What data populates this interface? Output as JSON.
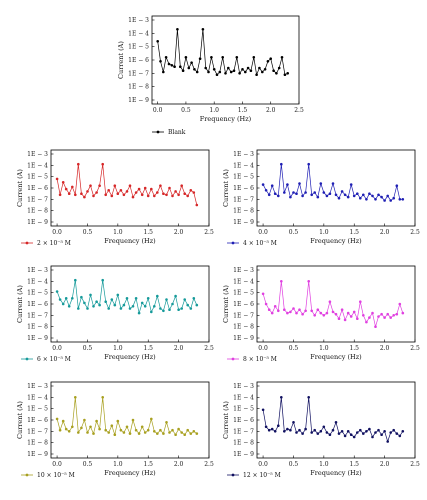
{
  "chart_data": [
    {
      "type": "line",
      "color": "#000000",
      "legend": "Blank",
      "xlabel": "Frequency (Hz)",
      "ylabel": "Current (A)",
      "xticks": [
        "0.0",
        "0.5",
        "1.0",
        "1.5",
        "2.0",
        "2.5"
      ],
      "yticks": [
        "1E − 3",
        "1E − 4",
        "1E − 5",
        "1E − 6",
        "1E − 7",
        "1E − 8",
        "1E − 9"
      ],
      "xlim": [
        -0.1,
        2.5
      ],
      "ylog_exponent_range": [
        -9,
        -3
      ],
      "x": [
        0.0,
        0.05,
        0.1,
        0.15,
        0.2,
        0.25,
        0.3,
        0.35,
        0.4,
        0.45,
        0.5,
        0.55,
        0.6,
        0.65,
        0.7,
        0.75,
        0.8,
        0.85,
        0.9,
        0.95,
        1.0,
        1.05,
        1.1,
        1.15,
        1.2,
        1.25,
        1.3,
        1.35,
        1.4,
        1.45,
        1.5,
        1.55,
        1.6,
        1.65,
        1.7,
        1.75,
        1.8,
        1.85,
        1.9,
        1.95,
        2.0,
        2.05,
        2.1,
        2.15,
        2.2,
        2.25,
        2.3
      ],
      "log10_y": [
        -4.6,
        -6.1,
        -6.9,
        -5.8,
        -6.3,
        -6.4,
        -6.5,
        -3.7,
        -6.5,
        -6.8,
        -5.8,
        -6.6,
        -6.2,
        -6.7,
        -6.9,
        -5.9,
        -3.7,
        -6.6,
        -6.9,
        -5.8,
        -6.7,
        -7.1,
        -6.9,
        -5.8,
        -7.0,
        -6.6,
        -6.9,
        -6.8,
        -5.8,
        -7.0,
        -6.7,
        -6.9,
        -6.6,
        -6.8,
        -5.8,
        -7.1,
        -6.6,
        -6.9,
        -6.7,
        -6.1,
        -5.9,
        -6.8,
        -7.0,
        -6.6,
        -5.8,
        -7.1,
        -7.0
      ]
    },
    {
      "type": "line",
      "color": "#d62728",
      "legend": "2 × 10⁻⁵ M",
      "xlabel": "Frequency (Hz)",
      "ylabel": "Current (A)",
      "xticks": [
        "0.0",
        "0.5",
        "1.0",
        "1.5",
        "2.0",
        "2.5"
      ],
      "yticks": [
        "1E − 3",
        "1E − 4",
        "1E − 5",
        "1E − 6",
        "1E − 7",
        "1E − 8",
        "1E − 9"
      ],
      "xlim": [
        -0.1,
        2.5
      ],
      "ylog_exponent_range": [
        -9,
        -3
      ],
      "x": [
        0.0,
        0.05,
        0.1,
        0.15,
        0.2,
        0.25,
        0.3,
        0.35,
        0.4,
        0.45,
        0.5,
        0.55,
        0.6,
        0.65,
        0.7,
        0.75,
        0.8,
        0.85,
        0.9,
        0.95,
        1.0,
        1.05,
        1.1,
        1.15,
        1.2,
        1.25,
        1.3,
        1.35,
        1.4,
        1.45,
        1.5,
        1.55,
        1.6,
        1.65,
        1.7,
        1.75,
        1.8,
        1.85,
        1.9,
        1.95,
        2.0,
        2.05,
        2.1,
        2.15,
        2.2,
        2.25,
        2.3
      ],
      "log10_y": [
        -5.2,
        -6.6,
        -5.5,
        -6.1,
        -6.5,
        -5.9,
        -6.6,
        -3.9,
        -6.5,
        -6.8,
        -6.3,
        -5.8,
        -6.7,
        -6.4,
        -5.8,
        -3.9,
        -6.6,
        -6.2,
        -6.7,
        -5.8,
        -6.5,
        -6.2,
        -6.6,
        -6.3,
        -5.8,
        -6.8,
        -6.4,
        -6.1,
        -6.6,
        -6.0,
        -6.7,
        -6.1,
        -6.7,
        -6.4,
        -5.8,
        -6.5,
        -6.6,
        -6.0,
        -6.7,
        -6.3,
        -6.6,
        -5.8,
        -6.5,
        -6.7,
        -6.2,
        -6.4,
        -7.5
      ]
    },
    {
      "type": "line",
      "color": "#1f1fb4",
      "legend": "4 × 10⁻⁵ M",
      "xlabel": "Frequency (Hz)",
      "ylabel": "Current (A)",
      "xticks": [
        "0.0",
        "0.5",
        "1.0",
        "1.5",
        "2.0",
        "2.5"
      ],
      "yticks": [
        "1E − 3",
        "1E − 4",
        "1E − 5",
        "1E − 6",
        "1E − 7",
        "1E − 8",
        "1E − 9"
      ],
      "xlim": [
        -0.1,
        2.5
      ],
      "ylog_exponent_range": [
        -9,
        -3
      ],
      "x": [
        0.0,
        0.05,
        0.1,
        0.15,
        0.2,
        0.25,
        0.3,
        0.35,
        0.4,
        0.45,
        0.5,
        0.55,
        0.6,
        0.65,
        0.7,
        0.75,
        0.8,
        0.85,
        0.9,
        0.95,
        1.0,
        1.05,
        1.1,
        1.15,
        1.2,
        1.25,
        1.3,
        1.35,
        1.4,
        1.45,
        1.5,
        1.55,
        1.6,
        1.65,
        1.7,
        1.75,
        1.8,
        1.85,
        1.9,
        1.95,
        2.0,
        2.05,
        2.1,
        2.15,
        2.2,
        2.25,
        2.3
      ],
      "log10_y": [
        -5.7,
        -6.2,
        -6.6,
        -5.8,
        -6.5,
        -6.7,
        -3.9,
        -6.4,
        -5.7,
        -6.8,
        -6.4,
        -6.5,
        -5.6,
        -6.7,
        -6.4,
        -3.9,
        -6.6,
        -6.4,
        -6.8,
        -5.6,
        -6.4,
        -6.7,
        -6.5,
        -5.6,
        -6.6,
        -6.9,
        -6.3,
        -6.6,
        -6.8,
        -5.7,
        -6.7,
        -6.5,
        -6.9,
        -6.6,
        -7.0,
        -6.5,
        -6.7,
        -7.0,
        -6.6,
        -6.8,
        -7.1,
        -6.7,
        -7.1,
        -6.9,
        -5.8,
        -7.0,
        -7.0
      ]
    },
    {
      "type": "line",
      "color": "#169a9a",
      "legend": "6 × 10⁻⁵ M",
      "xlabel": "Frequency (Hz)",
      "ylabel": "Current (A)",
      "xticks": [
        "0.0",
        "0.5",
        "1.0",
        "1.5",
        "2.0",
        "2.5"
      ],
      "yticks": [
        "1E − 3",
        "1E − 4",
        "1E − 5",
        "1E − 6",
        "1E − 7",
        "1E − 8",
        "1E − 9"
      ],
      "xlim": [
        -0.1,
        2.5
      ],
      "ylog_exponent_range": [
        -9,
        -3
      ],
      "x": [
        0.0,
        0.05,
        0.1,
        0.15,
        0.2,
        0.25,
        0.3,
        0.35,
        0.4,
        0.45,
        0.5,
        0.55,
        0.6,
        0.65,
        0.7,
        0.75,
        0.8,
        0.85,
        0.9,
        0.95,
        1.0,
        1.05,
        1.1,
        1.15,
        1.2,
        1.25,
        1.3,
        1.35,
        1.4,
        1.45,
        1.5,
        1.55,
        1.6,
        1.65,
        1.7,
        1.75,
        1.8,
        1.85,
        1.9,
        1.95,
        2.0,
        2.05,
        2.1,
        2.15,
        2.2,
        2.25,
        2.3
      ],
      "log10_y": [
        -4.9,
        -5.6,
        -6.0,
        -5.5,
        -6.2,
        -5.5,
        -3.9,
        -6.4,
        -5.4,
        -5.9,
        -6.4,
        -5.2,
        -6.2,
        -5.8,
        -6.1,
        -3.9,
        -5.8,
        -6.4,
        -5.6,
        -6.1,
        -5.2,
        -6.4,
        -6.1,
        -5.5,
        -6.4,
        -6.2,
        -5.5,
        -6.8,
        -5.9,
        -6.2,
        -5.5,
        -6.7,
        -6.2,
        -5.3,
        -6.4,
        -6.6,
        -5.6,
        -6.5,
        -6.0,
        -5.3,
        -6.5,
        -6.4,
        -5.6,
        -6.1,
        -6.4,
        -5.5,
        -6.1
      ]
    },
    {
      "type": "line",
      "color": "#e040e0",
      "legend": "8 × 10⁻⁵ M",
      "xlabel": "Frequency (Hz)",
      "ylabel": "Current (A)",
      "xticks": [
        "0.0",
        "0.5",
        "1.0",
        "1.5",
        "2.0",
        "2.5"
      ],
      "yticks": [
        "1E − 3",
        "1E − 4",
        "1E − 5",
        "1E − 6",
        "1E − 7",
        "1E − 8",
        "1E − 9"
      ],
      "xlim": [
        -0.1,
        2.5
      ],
      "ylog_exponent_range": [
        -9,
        -3
      ],
      "x": [
        0.0,
        0.05,
        0.1,
        0.15,
        0.2,
        0.25,
        0.3,
        0.35,
        0.4,
        0.45,
        0.5,
        0.55,
        0.6,
        0.65,
        0.7,
        0.75,
        0.8,
        0.85,
        0.9,
        0.95,
        1.0,
        1.05,
        1.1,
        1.15,
        1.2,
        1.25,
        1.3,
        1.35,
        1.4,
        1.45,
        1.5,
        1.55,
        1.6,
        1.65,
        1.7,
        1.75,
        1.8,
        1.85,
        1.9,
        1.95,
        2.0,
        2.05,
        2.1,
        2.15,
        2.2,
        2.25,
        2.3
      ],
      "log10_y": [
        -5.1,
        -6.0,
        -6.5,
        -6.8,
        -6.2,
        -6.6,
        -4.0,
        -6.5,
        -6.8,
        -6.7,
        -6.4,
        -6.8,
        -6.5,
        -6.9,
        -6.6,
        -4.0,
        -6.6,
        -7.0,
        -6.5,
        -6.8,
        -7.0,
        -6.8,
        -5.8,
        -6.7,
        -6.9,
        -7.3,
        -6.5,
        -7.4,
        -6.8,
        -7.1,
        -6.7,
        -7.3,
        -5.8,
        -7.0,
        -7.6,
        -7.2,
        -6.8,
        -8.0,
        -7.1,
        -6.9,
        -7.2,
        -6.9,
        -7.2,
        -7.0,
        -6.9,
        -6.0,
        -6.8
      ]
    },
    {
      "type": "line",
      "color": "#a8a020",
      "legend": "10 × 10⁻⁵ M",
      "xlabel": "Frequency (Hz)",
      "ylabel": "Current (A)",
      "xticks": [
        "0.0",
        "0.5",
        "1.0",
        "1.5",
        "2.0",
        "2.5"
      ],
      "yticks": [
        "1E − 3",
        "1E − 4",
        "1E − 5",
        "1E − 6",
        "1E − 7",
        "1E − 8",
        "1E − 9"
      ],
      "xlim": [
        -0.1,
        2.5
      ],
      "ylog_exponent_range": [
        -9,
        -3
      ],
      "x": [
        0.0,
        0.05,
        0.1,
        0.15,
        0.2,
        0.25,
        0.3,
        0.35,
        0.4,
        0.45,
        0.5,
        0.55,
        0.6,
        0.65,
        0.7,
        0.75,
        0.8,
        0.85,
        0.9,
        0.95,
        1.0,
        1.05,
        1.1,
        1.15,
        1.2,
        1.25,
        1.3,
        1.35,
        1.4,
        1.45,
        1.5,
        1.55,
        1.6,
        1.65,
        1.7,
        1.75,
        1.8,
        1.85,
        1.9,
        1.95,
        2.0,
        2.05,
        2.1,
        2.15,
        2.2,
        2.25,
        2.3
      ],
      "log10_y": [
        -5.9,
        -6.9,
        -6.1,
        -6.8,
        -7.0,
        -6.6,
        -4.0,
        -7.1,
        -6.7,
        -6.0,
        -7.1,
        -6.6,
        -7.2,
        -6.1,
        -6.8,
        -4.0,
        -6.9,
        -7.1,
        -6.5,
        -7.3,
        -6.1,
        -6.9,
        -7.1,
        -6.6,
        -7.2,
        -6.0,
        -6.9,
        -7.2,
        -6.6,
        -7.1,
        -6.9,
        -5.9,
        -7.0,
        -7.2,
        -6.9,
        -7.2,
        -6.2,
        -7.1,
        -6.9,
        -7.3,
        -6.8,
        -7.1,
        -7.3,
        -6.9,
        -7.2,
        -7.0,
        -7.2
      ]
    },
    {
      "type": "line",
      "color": "#101060",
      "legend": "12 × 10⁻⁵ M",
      "xlabel": "Frequency (Hz)",
      "ylabel": "Current (A)",
      "xticks": [
        "0.0",
        "0.5",
        "1.0",
        "1.5",
        "2.0",
        "2.5"
      ],
      "yticks": [
        "1E − 3",
        "1E − 4",
        "1E − 5",
        "1E − 6",
        "1E − 7",
        "1E − 8",
        "1E − 9"
      ],
      "xlim": [
        -0.1,
        2.5
      ],
      "ylog_exponent_range": [
        -9,
        -3
      ],
      "x": [
        0.0,
        0.05,
        0.1,
        0.15,
        0.2,
        0.25,
        0.3,
        0.35,
        0.4,
        0.45,
        0.5,
        0.55,
        0.6,
        0.65,
        0.7,
        0.75,
        0.8,
        0.85,
        0.9,
        0.95,
        1.0,
        1.05,
        1.1,
        1.15,
        1.2,
        1.25,
        1.3,
        1.35,
        1.4,
        1.45,
        1.5,
        1.55,
        1.6,
        1.65,
        1.7,
        1.75,
        1.8,
        1.85,
        1.9,
        1.95,
        2.0,
        2.05,
        2.1,
        2.15,
        2.2,
        2.25,
        2.3
      ],
      "log10_y": [
        -5.1,
        -6.6,
        -6.9,
        -6.8,
        -7.0,
        -6.5,
        -4.0,
        -7.0,
        -6.8,
        -6.9,
        -6.2,
        -7.1,
        -6.9,
        -7.2,
        -6.8,
        -4.0,
        -7.1,
        -6.9,
        -7.2,
        -7.0,
        -6.6,
        -7.1,
        -7.3,
        -6.9,
        -6.2,
        -7.2,
        -7.0,
        -7.4,
        -7.0,
        -7.3,
        -7.5,
        -7.1,
        -6.9,
        -7.2,
        -7.0,
        -6.8,
        -7.5,
        -7.1,
        -6.9,
        -7.3,
        -7.0,
        -7.9,
        -7.1,
        -6.9,
        -7.2,
        -7.4,
        -7.0
      ]
    }
  ]
}
